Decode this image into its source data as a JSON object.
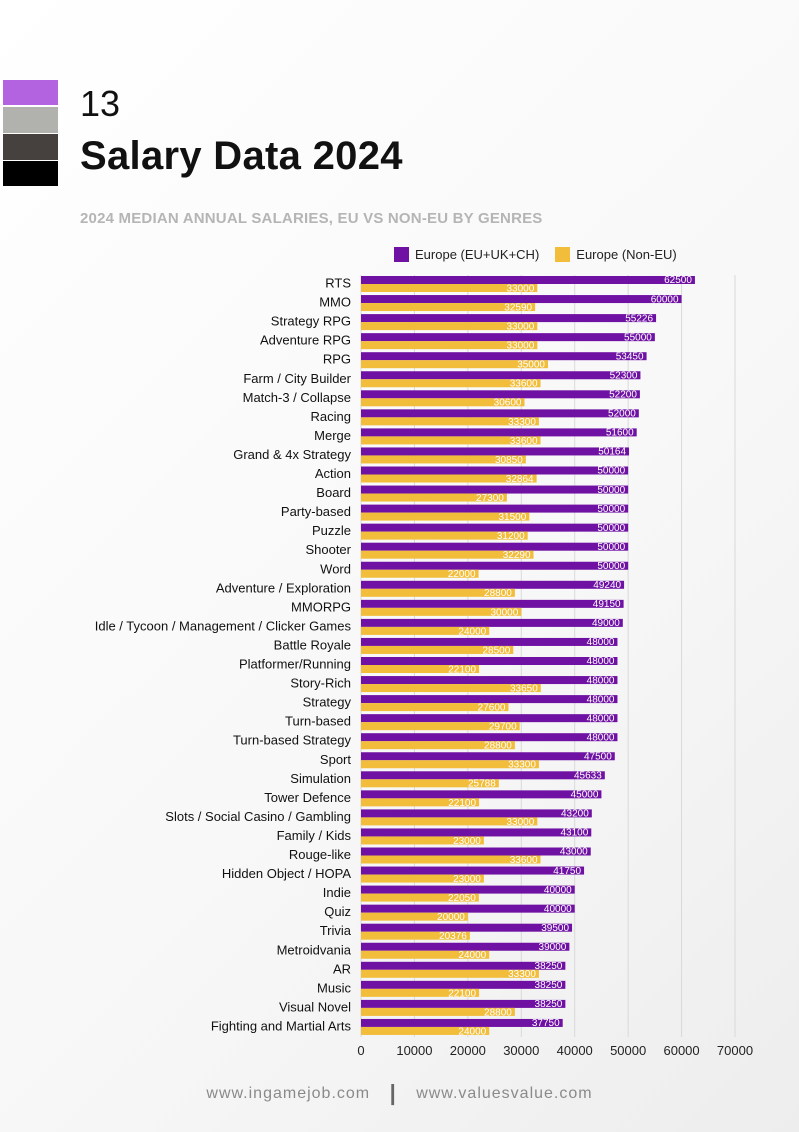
{
  "header": {
    "page_number": "13",
    "title": "Salary Data 2024",
    "subtitle": "2024 MEDIAN ANNUAL SALARIES, EU VS NON-EU BY GENRES",
    "swatch_colors": [
      "#b362e0",
      "#b1b1ae",
      "#46403f",
      "#000000"
    ]
  },
  "colors": {
    "eu": "#6f12a3",
    "non_eu": "#f2bd3a",
    "grid": "#d9d9d9"
  },
  "footer": {
    "left": "www.ingamejob.com",
    "separator": "|",
    "right": "www.valuesvalue.com"
  },
  "chart_data": {
    "type": "bar",
    "orientation": "horizontal",
    "categories": [
      "RTS",
      "MMO",
      "Strategy RPG",
      "Adventure RPG",
      "RPG",
      "Farm / City Builder",
      "Match-3 / Collapse",
      "Racing",
      "Merge",
      "Grand & 4x Strategy",
      "Action",
      "Board",
      "Party-based",
      "Puzzle",
      "Shooter",
      "Word",
      "Adventure / Exploration",
      "MMORPG",
      "Idle / Tycoon / Management / Clicker Games",
      "Battle Royale",
      "Platformer/Running",
      "Story-Rich",
      "Strategy",
      "Turn-based",
      "Turn-based Strategy",
      "Sport",
      "Simulation",
      "Tower Defence",
      "Slots / Social Casino / Gambling",
      "Family / Kids",
      "Rouge-like",
      "Hidden Object / HOPA",
      "Indie",
      "Quiz",
      "Trivia",
      "Metroidvania",
      "AR",
      "Music",
      "Visual Novel",
      "Fighting and Martial Arts"
    ],
    "series": [
      {
        "name": "Europe (EU+UK+CH)",
        "values": [
          62500,
          60000,
          55226,
          55000,
          53450,
          52300,
          52200,
          52000,
          51600,
          50164,
          50000,
          50000,
          50000,
          50000,
          50000,
          50000,
          49240,
          49150,
          49000,
          48000,
          48000,
          48000,
          48000,
          48000,
          48000,
          47500,
          45633,
          45000,
          43200,
          43100,
          43000,
          41750,
          40000,
          40000,
          39500,
          39000,
          38250,
          38250,
          38250,
          37750
        ]
      },
      {
        "name": "Europe (Non-EU)",
        "values": [
          33000,
          32590,
          33000,
          33000,
          35000,
          33600,
          30600,
          33300,
          33600,
          30850,
          32864,
          27300,
          31500,
          31200,
          32290,
          22000,
          28800,
          30000,
          24000,
          28500,
          22100,
          33650,
          27600,
          29700,
          28800,
          33300,
          25788,
          22100,
          33000,
          23000,
          33600,
          23000,
          22050,
          20000,
          20376,
          24000,
          33300,
          22100,
          28800,
          24000
        ]
      }
    ],
    "x_ticks": [
      "0",
      "10000",
      "20000",
      "30000",
      "40000",
      "50000",
      "60000",
      "70000"
    ],
    "xlim": [
      0,
      70000
    ],
    "grid": true,
    "legend_position": "top"
  }
}
